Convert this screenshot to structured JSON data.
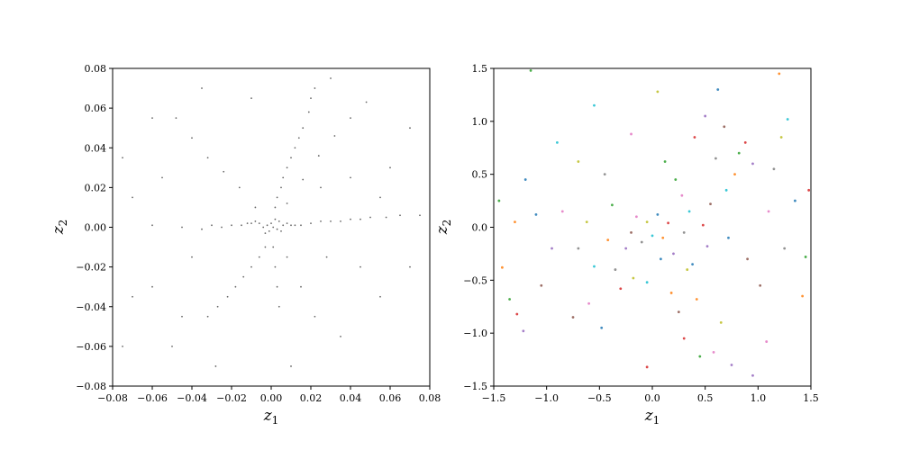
{
  "figure": {
    "background": "#ffffff"
  },
  "chart_data": [
    {
      "type": "scatter",
      "panel": "left",
      "xlabel": "z",
      "xlabel_sub": "1",
      "ylabel": "z",
      "ylabel_sub": "2",
      "xlim": [
        -0.08,
        0.08
      ],
      "ylim": [
        -0.08,
        0.08
      ],
      "grid": false,
      "xticks": [
        -0.08,
        -0.06,
        -0.04,
        -0.02,
        0.0,
        0.02,
        0.04,
        0.06,
        0.08
      ],
      "yticks": [
        -0.08,
        -0.06,
        -0.04,
        -0.02,
        0.0,
        0.02,
        0.04,
        0.06,
        0.08
      ],
      "xtick_labels": [
        "−0.08",
        "−0.06",
        "−0.04",
        "−0.02",
        "0.00",
        "0.02",
        "0.04",
        "0.06",
        "0.08"
      ],
      "ytick_labels": [
        "−0.08",
        "−0.06",
        "−0.04",
        "−0.02",
        "0.00",
        "0.02",
        "0.04",
        "0.06",
        "0.08"
      ],
      "marker_color": "#000000",
      "series": [
        {
          "points": [
            [
              0.001,
              0.0
            ],
            [
              -0.002,
              0.001
            ],
            [
              0.003,
              -0.001
            ],
            [
              0.0,
              0.002
            ],
            [
              -0.001,
              -0.002
            ],
            [
              0.004,
              0.003
            ],
            [
              -0.004,
              0.0
            ],
            [
              0.002,
              0.004
            ],
            [
              -0.003,
              -0.003
            ],
            [
              0.005,
              -0.002
            ],
            [
              0.006,
              0.001
            ],
            [
              -0.006,
              0.002
            ],
            [
              0.008,
              0.002
            ],
            [
              -0.008,
              0.003
            ],
            [
              0.01,
              0.001
            ],
            [
              -0.01,
              0.002
            ],
            [
              0.012,
              0.001
            ],
            [
              -0.012,
              0.002
            ],
            [
              0.015,
              0.001
            ],
            [
              -0.015,
              0.001
            ],
            [
              0.02,
              0.002
            ],
            [
              -0.02,
              0.001
            ],
            [
              0.025,
              0.003
            ],
            [
              0.03,
              0.003
            ],
            [
              0.035,
              0.003
            ],
            [
              0.04,
              0.004
            ],
            [
              0.045,
              0.004
            ],
            [
              0.05,
              0.005
            ],
            [
              0.058,
              0.005
            ],
            [
              0.065,
              0.006
            ],
            [
              0.075,
              0.006
            ],
            [
              -0.025,
              0.0
            ],
            [
              -0.03,
              0.001
            ],
            [
              -0.035,
              -0.001
            ],
            [
              -0.045,
              0.0
            ],
            [
              -0.06,
              0.001
            ],
            [
              0.002,
              0.01
            ],
            [
              0.003,
              0.015
            ],
            [
              0.005,
              0.02
            ],
            [
              0.006,
              0.025
            ],
            [
              0.008,
              0.03
            ],
            [
              0.01,
              0.035
            ],
            [
              0.012,
              0.04
            ],
            [
              0.014,
              0.045
            ],
            [
              0.016,
              0.05
            ],
            [
              0.019,
              0.058
            ],
            [
              0.02,
              0.065
            ],
            [
              0.022,
              0.07
            ],
            [
              -0.003,
              -0.01
            ],
            [
              -0.006,
              -0.015
            ],
            [
              -0.01,
              -0.02
            ],
            [
              -0.014,
              -0.025
            ],
            [
              -0.018,
              -0.03
            ],
            [
              -0.022,
              -0.035
            ],
            [
              -0.027,
              -0.04
            ],
            [
              -0.032,
              -0.045
            ],
            [
              0.001,
              -0.01
            ],
            [
              0.002,
              -0.02
            ],
            [
              0.003,
              -0.03
            ],
            [
              0.004,
              -0.04
            ],
            [
              0.008,
              -0.015
            ],
            [
              0.015,
              -0.03
            ],
            [
              0.022,
              -0.045
            ],
            [
              0.008,
              0.012
            ],
            [
              0.016,
              0.024
            ],
            [
              0.024,
              0.036
            ],
            [
              0.032,
              0.046
            ],
            [
              0.04,
              0.055
            ],
            [
              0.048,
              0.063
            ],
            [
              -0.008,
              0.01
            ],
            [
              -0.016,
              0.02
            ],
            [
              -0.024,
              0.028
            ],
            [
              -0.032,
              0.035
            ],
            [
              -0.04,
              0.045
            ],
            [
              -0.048,
              0.055
            ],
            [
              0.028,
              -0.015
            ],
            [
              0.045,
              -0.02
            ],
            [
              -0.04,
              -0.015
            ],
            [
              -0.06,
              -0.03
            ],
            [
              -0.07,
              -0.035
            ],
            [
              -0.075,
              -0.06
            ],
            [
              -0.05,
              -0.06
            ],
            [
              -0.028,
              -0.07
            ],
            [
              0.01,
              -0.07
            ],
            [
              0.035,
              -0.055
            ],
            [
              0.055,
              -0.035
            ],
            [
              0.07,
              -0.02
            ],
            [
              0.06,
              0.03
            ],
            [
              0.07,
              0.05
            ],
            [
              0.03,
              0.075
            ],
            [
              -0.01,
              0.065
            ],
            [
              -0.035,
              0.07
            ],
            [
              -0.06,
              0.055
            ],
            [
              -0.075,
              0.035
            ],
            [
              -0.07,
              0.015
            ],
            [
              0.055,
              0.015
            ],
            [
              -0.055,
              0.025
            ],
            [
              0.04,
              0.025
            ],
            [
              -0.045,
              -0.045
            ],
            [
              0.025,
              0.02
            ]
          ]
        }
      ]
    },
    {
      "type": "scatter",
      "panel": "right",
      "xlabel": "z",
      "xlabel_sub": "1",
      "ylabel": "z",
      "ylabel_sub": "2",
      "xlim": [
        -1.5,
        1.5
      ],
      "ylim": [
        -1.5,
        1.5
      ],
      "grid": false,
      "xticks": [
        -1.5,
        -1.0,
        -0.5,
        0.0,
        0.5,
        1.0,
        1.5
      ],
      "yticks": [
        -1.5,
        -1.0,
        -0.5,
        0.0,
        0.5,
        1.0,
        1.5
      ],
      "xtick_labels": [
        "−1.5",
        "−1.0",
        "−0.5",
        "0.0",
        "0.5",
        "1.0",
        "1.5"
      ],
      "ytick_labels": [
        "−1.5",
        "−1.0",
        "−0.5",
        "0.0",
        "0.5",
        "1.0",
        "1.5"
      ],
      "palette": [
        "#1f77b4",
        "#ff7f0e",
        "#2ca02c",
        "#d62728",
        "#9467bd",
        "#8c564b",
        "#e377c2",
        "#7f7f7f",
        "#bcbd22",
        "#17becf"
      ],
      "series": [
        {
          "points": [
            [
              -1.2,
              0.45
            ],
            [
              -1.42,
              -0.38
            ],
            [
              -1.35,
              -0.68
            ],
            [
              -1.28,
              -0.82
            ],
            [
              -1.22,
              -0.98
            ],
            [
              -1.05,
              -0.55
            ],
            [
              -0.85,
              0.15
            ],
            [
              -0.7,
              -0.2
            ],
            [
              -0.62,
              0.05
            ],
            [
              -0.55,
              -0.37
            ],
            [
              -0.48,
              -0.95
            ],
            [
              -0.42,
              -0.12
            ],
            [
              -0.38,
              0.21
            ],
            [
              -0.3,
              -0.58
            ],
            [
              -0.25,
              -0.2
            ],
            [
              -0.2,
              -0.05
            ],
            [
              -0.15,
              0.1
            ],
            [
              -0.1,
              -0.14
            ],
            [
              -0.05,
              0.05
            ],
            [
              0.0,
              -0.08
            ],
            [
              0.05,
              0.12
            ],
            [
              0.1,
              -0.1
            ],
            [
              0.12,
              0.62
            ],
            [
              0.15,
              0.04
            ],
            [
              0.2,
              -0.25
            ],
            [
              0.25,
              -0.8
            ],
            [
              0.28,
              0.3
            ],
            [
              0.3,
              -0.05
            ],
            [
              0.33,
              -0.4
            ],
            [
              0.35,
              0.15
            ],
            [
              0.38,
              -0.35
            ],
            [
              0.42,
              -0.68
            ],
            [
              0.45,
              -1.22
            ],
            [
              0.48,
              0.02
            ],
            [
              0.52,
              -0.18
            ],
            [
              0.55,
              0.22
            ],
            [
              0.58,
              -1.18
            ],
            [
              0.6,
              0.65
            ],
            [
              0.65,
              -0.9
            ],
            [
              0.7,
              0.35
            ],
            [
              0.72,
              -0.1
            ],
            [
              0.78,
              0.5
            ],
            [
              0.82,
              0.7
            ],
            [
              0.88,
              0.8
            ],
            [
              0.95,
              0.6
            ],
            [
              1.02,
              -0.55
            ],
            [
              1.08,
              -1.08
            ],
            [
              1.15,
              0.55
            ],
            [
              1.22,
              0.85
            ],
            [
              1.28,
              1.02
            ],
            [
              1.35,
              0.25
            ],
            [
              1.42,
              -0.65
            ],
            [
              1.45,
              -0.28
            ],
            [
              1.48,
              0.35
            ],
            [
              -0.95,
              -0.2
            ],
            [
              -0.75,
              -0.85
            ],
            [
              -0.6,
              -0.72
            ],
            [
              -0.35,
              -0.4
            ],
            [
              -0.18,
              -0.48
            ],
            [
              -0.05,
              -0.52
            ],
            [
              0.08,
              -0.3
            ],
            [
              0.18,
              -0.62
            ],
            [
              0.22,
              0.45
            ],
            [
              0.4,
              0.85
            ],
            [
              0.5,
              1.05
            ],
            [
              0.68,
              0.95
            ],
            [
              -0.2,
              0.88
            ],
            [
              -0.45,
              0.5
            ],
            [
              -0.7,
              0.62
            ],
            [
              -0.9,
              0.8
            ],
            [
              -1.1,
              0.12
            ],
            [
              -1.3,
              0.05
            ],
            [
              -1.45,
              0.25
            ],
            [
              0.3,
              -1.05
            ],
            [
              0.75,
              -1.3
            ],
            [
              0.9,
              -0.3
            ],
            [
              1.1,
              0.15
            ],
            [
              1.25,
              -0.2
            ],
            [
              0.05,
              1.28
            ],
            [
              -0.55,
              1.15
            ],
            [
              0.62,
              1.3
            ],
            [
              1.2,
              1.45
            ],
            [
              -1.15,
              1.48
            ],
            [
              -0.05,
              -1.32
            ],
            [
              0.95,
              -1.4
            ]
          ]
        }
      ]
    }
  ]
}
